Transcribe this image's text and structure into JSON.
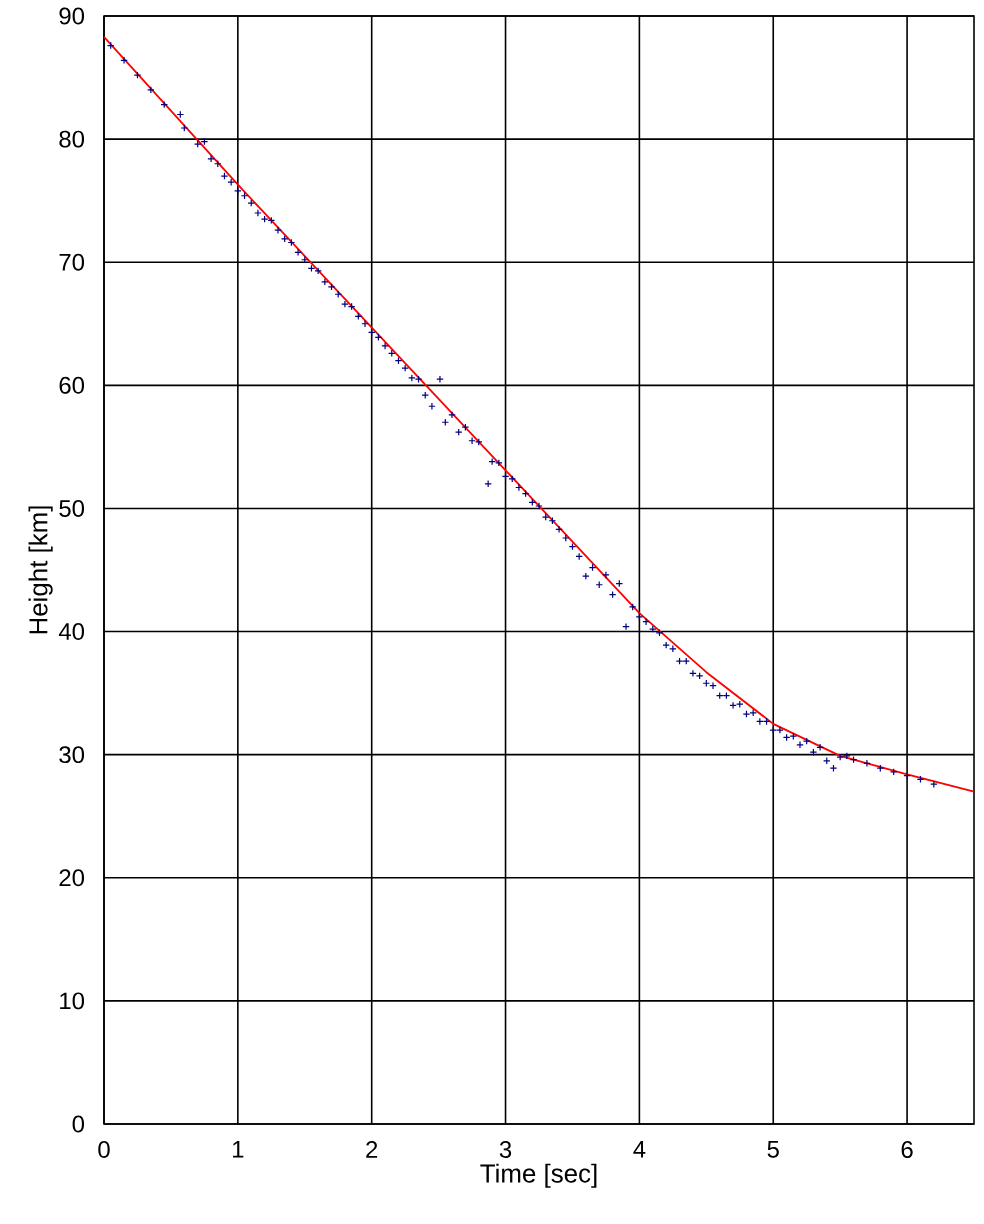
{
  "chart_data": {
    "type": "scatter",
    "xlabel": "Time [sec]",
    "ylabel": "Height [km]",
    "xlim": [
      0,
      6.5
    ],
    "ylim": [
      0,
      90
    ],
    "xticks": [
      0,
      1,
      2,
      3,
      4,
      5,
      6
    ],
    "yticks": [
      0,
      10,
      20,
      30,
      40,
      50,
      60,
      70,
      80,
      90
    ],
    "grid": true,
    "series": [
      {
        "color": "#000080",
        "marker": "cross",
        "x": [
          0.05,
          0.15,
          0.25,
          0.35,
          0.45,
          0.57,
          0.6,
          0.7,
          0.75,
          0.8,
          0.85,
          0.9,
          0.95,
          1.0,
          1.05,
          1.1,
          1.15,
          1.2,
          1.25,
          1.3,
          1.35,
          1.4,
          1.45,
          1.5,
          1.55,
          1.6,
          1.65,
          1.7,
          1.75,
          1.8,
          1.85,
          1.9,
          1.95,
          2.0,
          2.05,
          2.1,
          2.15,
          2.2,
          2.25,
          2.3,
          2.35,
          2.4,
          2.45,
          2.51,
          2.55,
          2.6,
          2.65,
          2.7,
          2.75,
          2.8,
          2.87,
          2.9,
          2.95,
          3.0,
          3.05,
          3.1,
          3.15,
          3.2,
          3.25,
          3.3,
          3.35,
          3.4,
          3.45,
          3.5,
          3.55,
          3.6,
          3.65,
          3.7,
          3.75,
          3.8,
          3.85,
          3.9,
          3.95,
          4.0,
          4.05,
          4.1,
          4.15,
          4.2,
          4.25,
          4.3,
          4.35,
          4.4,
          4.45,
          4.5,
          4.55,
          4.6,
          4.65,
          4.7,
          4.75,
          4.8,
          4.85,
          4.9,
          4.95,
          5.0,
          5.05,
          5.1,
          5.15,
          5.2,
          5.25,
          5.3,
          5.35,
          5.4,
          5.45,
          5.5,
          5.55,
          5.6,
          5.7,
          5.8,
          5.9,
          6.0,
          6.1,
          6.2
        ],
        "values": [
          87.6,
          86.4,
          85.2,
          84.0,
          82.8,
          82.0,
          80.9,
          79.6,
          79.8,
          78.4,
          78.0,
          77.0,
          76.5,
          75.8,
          75.4,
          74.8,
          74.0,
          73.5,
          73.4,
          72.6,
          71.9,
          71.6,
          70.8,
          70.2,
          69.5,
          69.3,
          68.4,
          68.0,
          67.4,
          66.6,
          66.4,
          65.6,
          65.0,
          64.3,
          63.9,
          63.2,
          62.6,
          62.0,
          61.4,
          60.6,
          60.5,
          59.2,
          58.3,
          60.5,
          57.0,
          57.6,
          56.2,
          56.6,
          55.5,
          55.4,
          52.0,
          53.8,
          53.7,
          52.6,
          52.4,
          51.7,
          51.2,
          50.5,
          50.2,
          49.3,
          49.0,
          48.3,
          47.6,
          46.9,
          46.1,
          44.5,
          45.2,
          43.8,
          44.6,
          43.0,
          43.9,
          40.4,
          42.0,
          41.2,
          40.8,
          40.2,
          39.9,
          38.9,
          38.6,
          37.6,
          37.6,
          36.6,
          36.4,
          35.8,
          35.6,
          34.8,
          34.8,
          34.0,
          34.1,
          33.3,
          33.4,
          32.7,
          32.7,
          32.0,
          32.0,
          31.4,
          31.5,
          30.8,
          31.1,
          30.2,
          30.6,
          29.5,
          28.9,
          29.8,
          29.9,
          29.6,
          29.3,
          28.9,
          28.6,
          28.3,
          28.0,
          27.6
        ]
      },
      {
        "type": "line",
        "color": "#ff0000",
        "line_style": "solid",
        "x": [
          0,
          0.5,
          1,
          1.5,
          2,
          2.5,
          3,
          3.5,
          4,
          4.5,
          5,
          5.5,
          6,
          6.5
        ],
        "values": [
          88.3,
          82.3,
          76.3,
          70.5,
          64.7,
          58.9,
          53.1,
          47.3,
          41.5,
          36.7,
          32.5,
          29.9,
          28.4,
          27.0
        ]
      }
    ]
  }
}
